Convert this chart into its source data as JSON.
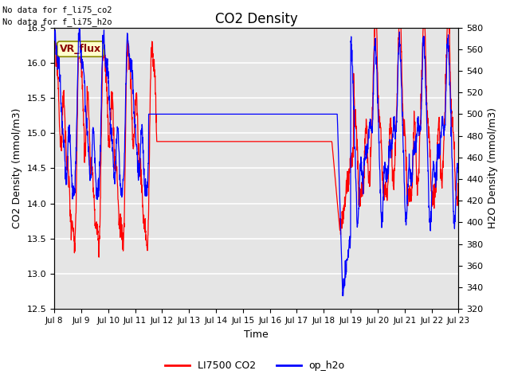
{
  "title": "CO2 Density",
  "xlabel": "Time",
  "ylabel_left": "CO2 Density (mmol/m3)",
  "ylabel_right": "H2O Density (mmol/m3)",
  "text_top_left_1": "No data for f_li75_co2",
  "text_top_left_2": "No data for f_li75_h2o",
  "vr_flux_label": "VR_flux",
  "ylim_left": [
    12.5,
    16.5
  ],
  "ylim_right": [
    320,
    580
  ],
  "xtick_labels": [
    "Jul 8",
    "Jul 9",
    "Jul 10",
    "Jul 11",
    "Jul 12",
    "Jul 13",
    "Jul 14",
    "Jul 15",
    "Jul 16",
    "Jul 17",
    "Jul 18",
    "Jul 19",
    "Jul 20",
    "Jul 21",
    "Jul 22",
    "Jul 23"
  ],
  "legend_entries": [
    "LI7500 CO2",
    "op_h2o"
  ],
  "bg_color": "#e5e5e5",
  "grid_color": "white",
  "xlim": [
    0,
    15
  ],
  "co2_flat_value": 14.88,
  "h2o_flat_value": 500.0,
  "co2_flat_start": 3.8,
  "co2_flat_end": 10.3,
  "h2o_flat_start": 3.5,
  "h2o_flat_end": 10.5,
  "co2_drop_point": 10.3,
  "h2o_drop_point": 10.5,
  "co2_drop_target": 13.6,
  "h2o_drop_target": 390.0
}
